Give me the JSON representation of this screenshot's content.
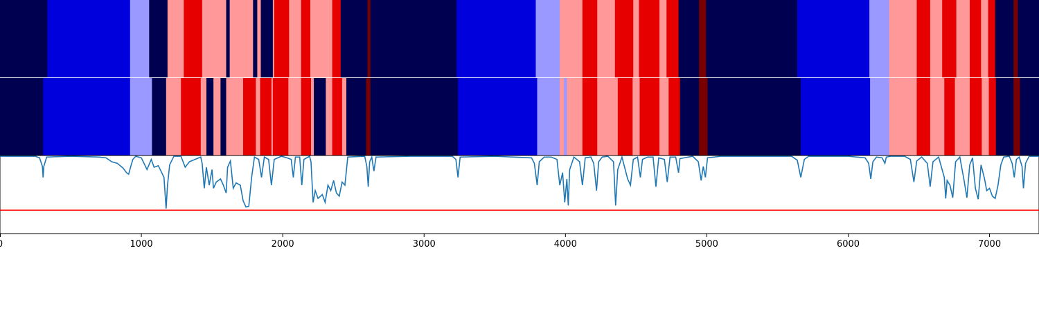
{
  "chart_data": {
    "type": "heatmap",
    "x_range": [
      0,
      7350
    ],
    "x_ticks": [
      0,
      1000,
      2000,
      3000,
      4000,
      5000,
      6000,
      7000
    ],
    "x_tick_labels": [
      "0",
      "1000",
      "2000",
      "3000",
      "4000",
      "5000",
      "6000",
      "7000"
    ],
    "colors": {
      "0": "#000050",
      "1": "#0000dc",
      "2": "#9999ff",
      "3": "#ff9999",
      "4": "#e60000",
      "5": "#780000"
    },
    "tracks": [
      {
        "segments": [
          [
            0,
            335,
            0
          ],
          [
            335,
            920,
            1
          ],
          [
            920,
            1055,
            2
          ],
          [
            1055,
            1185,
            0
          ],
          [
            1185,
            1300,
            3
          ],
          [
            1300,
            1430,
            4
          ],
          [
            1430,
            1600,
            3
          ],
          [
            1600,
            1625,
            0
          ],
          [
            1625,
            1790,
            3
          ],
          [
            1790,
            1820,
            0
          ],
          [
            1820,
            1845,
            3
          ],
          [
            1845,
            1930,
            0
          ],
          [
            1930,
            1940,
            3
          ],
          [
            1940,
            2045,
            4
          ],
          [
            2045,
            2130,
            3
          ],
          [
            2130,
            2195,
            4
          ],
          [
            2195,
            2350,
            3
          ],
          [
            2350,
            2410,
            4
          ],
          [
            2410,
            2600,
            0
          ],
          [
            2600,
            2620,
            5
          ],
          [
            2620,
            3230,
            0
          ],
          [
            3230,
            3790,
            1
          ],
          [
            3790,
            3960,
            2
          ],
          [
            3960,
            4120,
            3
          ],
          [
            4120,
            4225,
            4
          ],
          [
            4225,
            4350,
            3
          ],
          [
            4350,
            4480,
            4
          ],
          [
            4480,
            4520,
            3
          ],
          [
            4520,
            4665,
            4
          ],
          [
            4665,
            4715,
            3
          ],
          [
            4715,
            4800,
            4
          ],
          [
            4800,
            4945,
            0
          ],
          [
            4945,
            4995,
            5
          ],
          [
            4995,
            5640,
            0
          ],
          [
            5640,
            6150,
            1
          ],
          [
            6150,
            6290,
            2
          ],
          [
            6290,
            6485,
            3
          ],
          [
            6485,
            6580,
            4
          ],
          [
            6580,
            6665,
            3
          ],
          [
            6665,
            6765,
            4
          ],
          [
            6765,
            6860,
            3
          ],
          [
            6860,
            6940,
            4
          ],
          [
            6940,
            6990,
            3
          ],
          [
            6990,
            7040,
            4
          ],
          [
            7040,
            7170,
            0
          ],
          [
            7170,
            7200,
            5
          ],
          [
            7200,
            7350,
            0
          ]
        ]
      },
      {
        "segments": [
          [
            0,
            305,
            0
          ],
          [
            305,
            920,
            1
          ],
          [
            920,
            1075,
            2
          ],
          [
            1075,
            1175,
            0
          ],
          [
            1175,
            1280,
            3
          ],
          [
            1280,
            1420,
            4
          ],
          [
            1420,
            1460,
            3
          ],
          [
            1460,
            1510,
            0
          ],
          [
            1510,
            1560,
            3
          ],
          [
            1560,
            1600,
            0
          ],
          [
            1600,
            1720,
            3
          ],
          [
            1720,
            1810,
            4
          ],
          [
            1810,
            1840,
            3
          ],
          [
            1840,
            1920,
            4
          ],
          [
            1920,
            1930,
            3
          ],
          [
            1930,
            2040,
            4
          ],
          [
            2040,
            2130,
            3
          ],
          [
            2130,
            2200,
            4
          ],
          [
            2200,
            2220,
            3
          ],
          [
            2220,
            2305,
            0
          ],
          [
            2305,
            2350,
            3
          ],
          [
            2350,
            2420,
            4
          ],
          [
            2420,
            2450,
            3
          ],
          [
            2450,
            2590,
            0
          ],
          [
            2590,
            2620,
            5
          ],
          [
            2620,
            3240,
            0
          ],
          [
            3240,
            3800,
            1
          ],
          [
            3800,
            3960,
            2
          ],
          [
            3960,
            3990,
            3
          ],
          [
            3990,
            4010,
            2
          ],
          [
            4010,
            4120,
            3
          ],
          [
            4120,
            4225,
            4
          ],
          [
            4225,
            4370,
            3
          ],
          [
            4370,
            4475,
            4
          ],
          [
            4475,
            4525,
            3
          ],
          [
            4525,
            4665,
            4
          ],
          [
            4665,
            4730,
            3
          ],
          [
            4730,
            4810,
            4
          ],
          [
            4810,
            4945,
            0
          ],
          [
            4945,
            5005,
            5
          ],
          [
            5005,
            5665,
            0
          ],
          [
            5665,
            6155,
            1
          ],
          [
            6155,
            6290,
            2
          ],
          [
            6290,
            6485,
            3
          ],
          [
            6485,
            6580,
            4
          ],
          [
            6580,
            6680,
            3
          ],
          [
            6680,
            6755,
            4
          ],
          [
            6755,
            6860,
            3
          ],
          [
            6860,
            6945,
            4
          ],
          [
            6945,
            6995,
            3
          ],
          [
            6995,
            7045,
            4
          ],
          [
            7045,
            7170,
            0
          ],
          [
            7170,
            7215,
            5
          ],
          [
            7215,
            7350,
            0
          ]
        ]
      }
    ],
    "line": {
      "color": "#1f77b4",
      "threshold": 0.3,
      "threshold_color": "#ff0000",
      "ylim": [
        0,
        1
      ],
      "points": [
        [
          0,
          0.99
        ],
        [
          250,
          0.99
        ],
        [
          280,
          0.97
        ],
        [
          300,
          0.86
        ],
        [
          305,
          0.72
        ],
        [
          310,
          0.86
        ],
        [
          330,
          0.98
        ],
        [
          500,
          0.99
        ],
        [
          700,
          0.98
        ],
        [
          750,
          0.97
        ],
        [
          790,
          0.92
        ],
        [
          830,
          0.9
        ],
        [
          870,
          0.84
        ],
        [
          895,
          0.78
        ],
        [
          910,
          0.76
        ],
        [
          925,
          0.86
        ],
        [
          940,
          0.95
        ],
        [
          960,
          0.99
        ],
        [
          1000,
          0.97
        ],
        [
          1040,
          0.82
        ],
        [
          1070,
          0.95
        ],
        [
          1090,
          0.85
        ],
        [
          1120,
          0.87
        ],
        [
          1160,
          0.72
        ],
        [
          1175,
          0.32
        ],
        [
          1185,
          0.62
        ],
        [
          1200,
          0.88
        ],
        [
          1230,
          0.99
        ],
        [
          1280,
          0.99
        ],
        [
          1310,
          0.85
        ],
        [
          1340,
          0.92
        ],
        [
          1380,
          0.95
        ],
        [
          1420,
          0.98
        ],
        [
          1430,
          0.9
        ],
        [
          1445,
          0.58
        ],
        [
          1460,
          0.85
        ],
        [
          1480,
          0.62
        ],
        [
          1500,
          0.82
        ],
        [
          1510,
          0.58
        ],
        [
          1530,
          0.66
        ],
        [
          1560,
          0.7
        ],
        [
          1580,
          0.62
        ],
        [
          1600,
          0.52
        ],
        [
          1610,
          0.85
        ],
        [
          1630,
          0.93
        ],
        [
          1650,
          0.58
        ],
        [
          1670,
          0.65
        ],
        [
          1700,
          0.62
        ],
        [
          1720,
          0.42
        ],
        [
          1740,
          0.34
        ],
        [
          1760,
          0.35
        ],
        [
          1780,
          0.72
        ],
        [
          1800,
          0.98
        ],
        [
          1830,
          0.95
        ],
        [
          1850,
          0.72
        ],
        [
          1870,
          0.98
        ],
        [
          1900,
          0.95
        ],
        [
          1920,
          0.62
        ],
        [
          1940,
          0.95
        ],
        [
          1990,
          0.99
        ],
        [
          2030,
          0.97
        ],
        [
          2060,
          0.95
        ],
        [
          2075,
          0.72
        ],
        [
          2090,
          0.98
        ],
        [
          2120,
          0.98
        ],
        [
          2135,
          0.62
        ],
        [
          2150,
          0.95
        ],
        [
          2190,
          0.99
        ],
        [
          2200,
          0.92
        ],
        [
          2215,
          0.4
        ],
        [
          2230,
          0.55
        ],
        [
          2250,
          0.45
        ],
        [
          2280,
          0.5
        ],
        [
          2300,
          0.4
        ],
        [
          2320,
          0.62
        ],
        [
          2340,
          0.55
        ],
        [
          2360,
          0.68
        ],
        [
          2380,
          0.52
        ],
        [
          2400,
          0.48
        ],
        [
          2420,
          0.66
        ],
        [
          2440,
          0.62
        ],
        [
          2460,
          0.98
        ],
        [
          2580,
          0.99
        ],
        [
          2595,
          0.86
        ],
        [
          2605,
          0.6
        ],
        [
          2615,
          0.92
        ],
        [
          2630,
          0.98
        ],
        [
          2645,
          0.8
        ],
        [
          2660,
          0.98
        ],
        [
          2900,
          0.99
        ],
        [
          3200,
          0.99
        ],
        [
          3225,
          0.95
        ],
        [
          3240,
          0.72
        ],
        [
          3255,
          0.98
        ],
        [
          3500,
          0.99
        ],
        [
          3760,
          0.97
        ],
        [
          3780,
          0.9
        ],
        [
          3800,
          0.62
        ],
        [
          3815,
          0.92
        ],
        [
          3850,
          0.98
        ],
        [
          3900,
          0.98
        ],
        [
          3940,
          0.95
        ],
        [
          3960,
          0.62
        ],
        [
          3980,
          0.78
        ],
        [
          3995,
          0.4
        ],
        [
          4010,
          0.7
        ],
        [
          4020,
          0.36
        ],
        [
          4030,
          0.82
        ],
        [
          4060,
          0.98
        ],
        [
          4100,
          0.92
        ],
        [
          4120,
          0.62
        ],
        [
          4140,
          0.97
        ],
        [
          4180,
          0.98
        ],
        [
          4200,
          0.9
        ],
        [
          4220,
          0.55
        ],
        [
          4235,
          0.92
        ],
        [
          4260,
          0.98
        ],
        [
          4300,
          0.99
        ],
        [
          4340,
          0.92
        ],
        [
          4355,
          0.36
        ],
        [
          4370,
          0.82
        ],
        [
          4400,
          0.98
        ],
        [
          4440,
          0.7
        ],
        [
          4460,
          0.62
        ],
        [
          4480,
          0.95
        ],
        [
          4510,
          0.98
        ],
        [
          4530,
          0.72
        ],
        [
          4545,
          0.95
        ],
        [
          4580,
          0.98
        ],
        [
          4620,
          0.98
        ],
        [
          4640,
          0.6
        ],
        [
          4660,
          0.97
        ],
        [
          4700,
          0.95
        ],
        [
          4720,
          0.66
        ],
        [
          4740,
          0.98
        ],
        [
          4780,
          0.98
        ],
        [
          4800,
          0.78
        ],
        [
          4810,
          0.96
        ],
        [
          4900,
          0.99
        ],
        [
          4940,
          0.92
        ],
        [
          4960,
          0.68
        ],
        [
          4975,
          0.86
        ],
        [
          4990,
          0.72
        ],
        [
          5005,
          0.97
        ],
        [
          5100,
          0.99
        ],
        [
          5600,
          0.99
        ],
        [
          5640,
          0.94
        ],
        [
          5665,
          0.72
        ],
        [
          5690,
          0.95
        ],
        [
          5720,
          0.99
        ],
        [
          6000,
          0.99
        ],
        [
          6120,
          0.97
        ],
        [
          6145,
          0.9
        ],
        [
          6160,
          0.7
        ],
        [
          6175,
          0.92
        ],
        [
          6200,
          0.98
        ],
        [
          6240,
          0.97
        ],
        [
          6260,
          0.9
        ],
        [
          6270,
          0.98
        ],
        [
          6300,
          0.99
        ],
        [
          6400,
          0.99
        ],
        [
          6440,
          0.95
        ],
        [
          6465,
          0.66
        ],
        [
          6485,
          0.93
        ],
        [
          6520,
          0.98
        ],
        [
          6560,
          0.9
        ],
        [
          6580,
          0.6
        ],
        [
          6600,
          0.92
        ],
        [
          6640,
          0.98
        ],
        [
          6680,
          0.72
        ],
        [
          6690,
          0.45
        ],
        [
          6700,
          0.68
        ],
        [
          6720,
          0.62
        ],
        [
          6740,
          0.46
        ],
        [
          6760,
          0.92
        ],
        [
          6790,
          0.98
        ],
        [
          6820,
          0.68
        ],
        [
          6840,
          0.46
        ],
        [
          6860,
          0.88
        ],
        [
          6880,
          0.97
        ],
        [
          6900,
          0.58
        ],
        [
          6920,
          0.44
        ],
        [
          6940,
          0.88
        ],
        [
          6965,
          0.7
        ],
        [
          6980,
          0.55
        ],
        [
          7000,
          0.58
        ],
        [
          7020,
          0.48
        ],
        [
          7040,
          0.45
        ],
        [
          7060,
          0.62
        ],
        [
          7080,
          0.88
        ],
        [
          7100,
          0.98
        ],
        [
          7140,
          0.99
        ],
        [
          7160,
          0.9
        ],
        [
          7175,
          0.72
        ],
        [
          7190,
          0.95
        ],
        [
          7210,
          0.98
        ],
        [
          7230,
          0.86
        ],
        [
          7240,
          0.58
        ],
        [
          7255,
          0.9
        ],
        [
          7280,
          0.99
        ],
        [
          7350,
          0.99
        ]
      ]
    }
  }
}
